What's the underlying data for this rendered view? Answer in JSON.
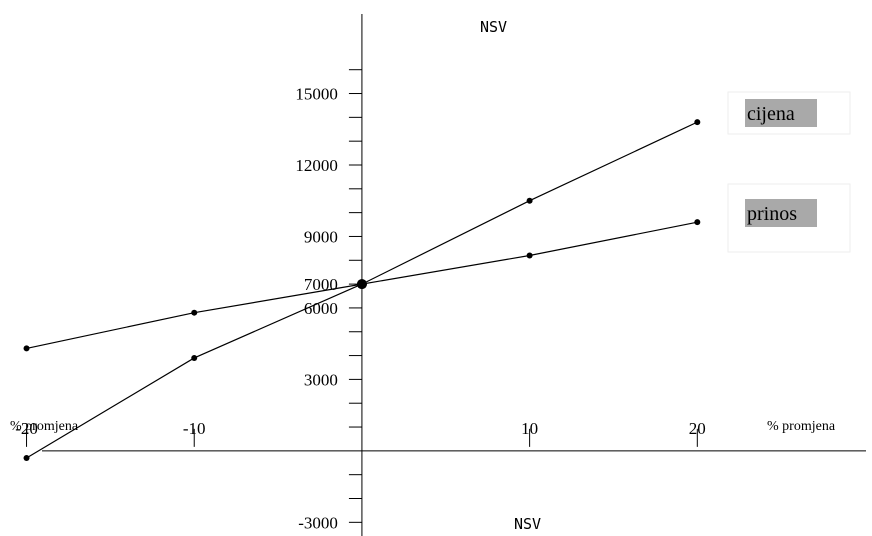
{
  "chart_data": {
    "type": "line",
    "x": [
      -20,
      -10,
      0,
      10,
      20
    ],
    "series": [
      {
        "name": "cijena",
        "values": [
          -300,
          3900,
          7000,
          10500,
          13800
        ]
      },
      {
        "name": "prinos",
        "values": [
          4300,
          5800,
          7000,
          8200,
          9600
        ]
      }
    ],
    "xlabel": "% promjena",
    "ylabel": "NSV",
    "xlim": [
      -22,
      30
    ],
    "ylim": [
      -3700,
      18800
    ],
    "x_ticks": [
      -20,
      -10,
      10,
      20
    ],
    "x_tick_labels": [
      "-20",
      "-10",
      "10",
      "20"
    ],
    "y_tick_labels": [
      {
        "value": 15000,
        "label": "15000"
      },
      {
        "value": 12000,
        "label": "12000"
      },
      {
        "value": 9000,
        "label": "9000"
      },
      {
        "value": 7000,
        "label": "7000"
      },
      {
        "value": 6000,
        "label": "6000"
      },
      {
        "value": 3000,
        "label": "3000"
      },
      {
        "value": -3000,
        "label": "-3000"
      }
    ],
    "y_minor_step": 1000,
    "grid": false,
    "labels": {
      "x_left": "% promjena",
      "x_right": "% promjena",
      "y_top": "NSV",
      "y_bottom": "NSV"
    },
    "line_color": "#000000",
    "label_background": "#a9a9a9"
  }
}
